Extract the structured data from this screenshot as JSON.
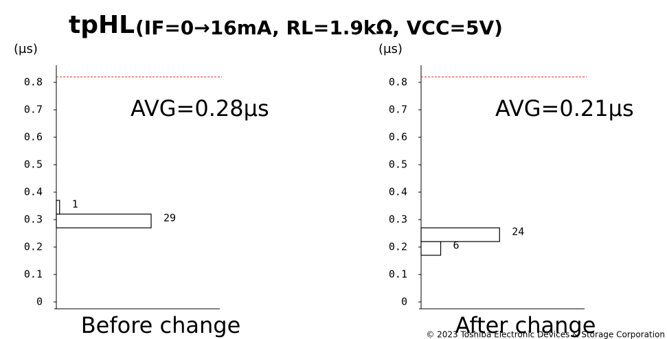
{
  "title": "tpHL",
  "subtitle": "(IF=0→16mA, RL=1.9kΩ, VCC=5V)",
  "footer": "© 2023 Toshiba Electronic Devices & Storage Corporation",
  "chart_data": [
    {
      "type": "histogram",
      "orientation": "horizontal",
      "y_label": "(µs)",
      "annotation": "AVG=0.28µs",
      "x_label": "Before change",
      "bins": [
        0.27,
        0.32,
        0.37
      ],
      "values": [
        29,
        1
      ],
      "color": "#000000",
      "fill": "#ffffff",
      "ylim": [
        0,
        0.85
      ],
      "yticks": [
        0,
        0.1,
        0.2,
        0.3,
        0.4,
        0.5,
        0.6,
        0.7,
        0.8
      ],
      "xlim": [
        0,
        50
      ],
      "ref_line": 0.82,
      "ref_color": "#e02020"
    },
    {
      "type": "histogram",
      "orientation": "horizontal",
      "y_label": "(µs)",
      "annotation": "AVG=0.21µs",
      "x_label": "After change",
      "bins": [
        0.17,
        0.22,
        0.27
      ],
      "values": [
        6,
        24
      ],
      "color": "#000000",
      "fill": "#ffffff",
      "ylim": [
        0,
        0.85
      ],
      "yticks": [
        0,
        0.1,
        0.2,
        0.3,
        0.4,
        0.5,
        0.6,
        0.7,
        0.8
      ],
      "xlim": [
        0,
        50
      ],
      "ref_line": 0.82,
      "ref_color": "#e02020"
    }
  ]
}
